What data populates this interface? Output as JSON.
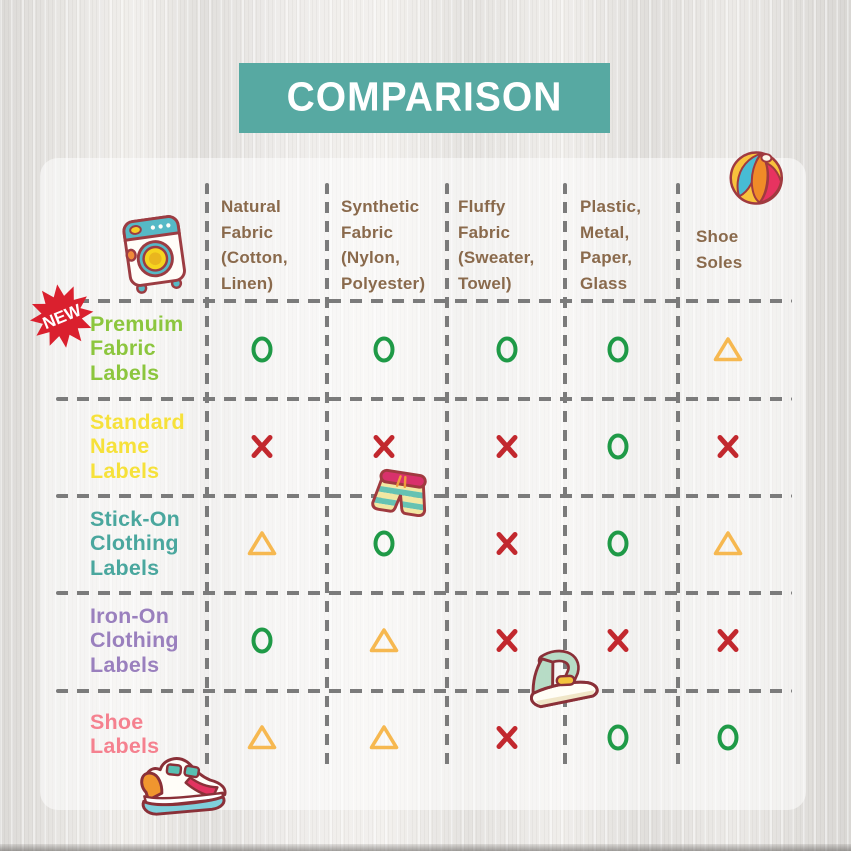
{
  "title": "COMPARISON",
  "badge": "NEW",
  "colors": {
    "banner_bg": "#57a9a2",
    "banner_text": "#ffffff",
    "header_text": "#8a6a4c",
    "grid_line": "#7b7b7b",
    "badge_bg": "#da202e",
    "badge_text": "#ffffff",
    "symbol_circle": "#1f9a47",
    "symbol_cross": "#c2282e",
    "symbol_triangle": "#f6b850"
  },
  "table": {
    "columns": [
      "Natural\nFabric\n(Cotton,\nLinen)",
      "Synthetic\nFabric\n(Nylon,\nPolyester)",
      "Fluffy\nFabric\n(Sweater,\nTowel)",
      "Plastic,\nMetal,\nPaper,\nGlass",
      "Shoe\nSoles"
    ],
    "rows": [
      {
        "label": "Premuim\nFabric\nLabels",
        "color": "#8cc63e",
        "is_new": true,
        "cells": [
          "O",
          "O",
          "O",
          "O",
          "△"
        ]
      },
      {
        "label": "Standard\nName\nLabels",
        "color": "#f6e13a",
        "is_new": false,
        "cells": [
          "X",
          "X",
          "X",
          "O",
          "X"
        ]
      },
      {
        "label": "Stick-On\nClothing\nLabels",
        "color": "#4aa79e",
        "is_new": false,
        "cells": [
          "△",
          "O",
          "X",
          "O",
          "△"
        ]
      },
      {
        "label": "Iron-On\nClothing\nLabels",
        "color": "#9a80be",
        "is_new": false,
        "cells": [
          "O",
          "△",
          "X",
          "X",
          "X"
        ]
      },
      {
        "label": "Shoe\nLabels",
        "color": "#f5818f",
        "is_new": false,
        "cells": [
          "△",
          "△",
          "X",
          "O",
          "O"
        ]
      }
    ]
  },
  "icons": [
    "washing-machine-icon",
    "beach-ball-icon",
    "swim-shorts-icon",
    "iron-icon",
    "sneaker-icon",
    "new-badge"
  ],
  "chart_data": {
    "type": "table",
    "title": "COMPARISON",
    "columns": [
      "Natural Fabric (Cotton, Linen)",
      "Synthetic Fabric (Nylon, Polyester)",
      "Fluffy Fabric (Sweater, Towel)",
      "Plastic, Metal, Paper, Glass",
      "Shoe Soles"
    ],
    "rows": [
      {
        "name": "Premuim Fabric Labels",
        "values": [
          "O",
          "O",
          "O",
          "O",
          "△"
        ]
      },
      {
        "name": "Standard Name Labels",
        "values": [
          "X",
          "X",
          "X",
          "O",
          "X"
        ]
      },
      {
        "name": "Stick-On Clothing Labels",
        "values": [
          "△",
          "O",
          "X",
          "O",
          "△"
        ]
      },
      {
        "name": "Iron-On Clothing Labels",
        "values": [
          "O",
          "△",
          "X",
          "X",
          "X"
        ]
      },
      {
        "name": "Shoe Labels",
        "values": [
          "△",
          "△",
          "X",
          "O",
          "O"
        ]
      }
    ],
    "symbols_used": [
      "O",
      "X",
      "△"
    ],
    "layout": "comparison matrix with dashed grid"
  }
}
